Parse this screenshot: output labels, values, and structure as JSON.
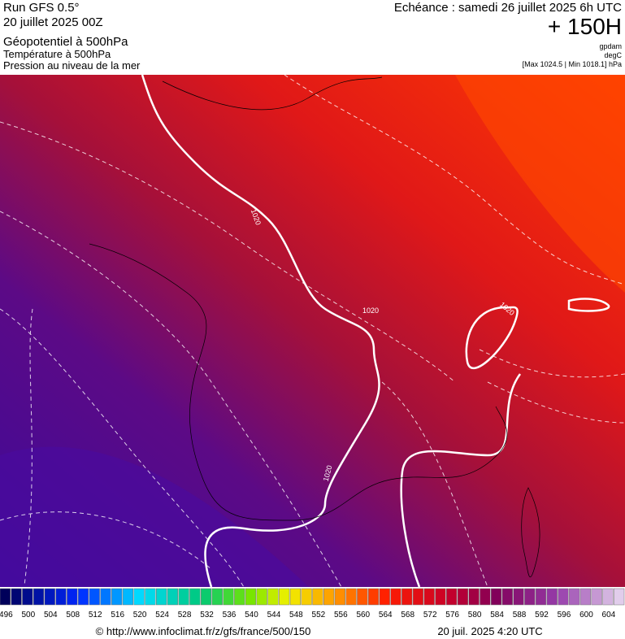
{
  "header": {
    "run": "Run GFS 0.5°",
    "run_date": "20 juillet 2025 00Z",
    "layer1": "Géopotentiel à 500hPa",
    "layer2": "Température à 500hPa",
    "layer3": "Pression au niveau de la mer",
    "valid": "Echéance : samedi 26 juillet 2025 6h UTC",
    "lead": "+ 150H",
    "unit1": "gpdam",
    "unit2": "degC",
    "range": "[Max 1024.5 | Min 1018.1] hPa"
  },
  "isobars": [
    "1020",
    "1020",
    "1020",
    "1020"
  ],
  "legend": {
    "labels": [
      "496",
      "500",
      "504",
      "508",
      "512",
      "516",
      "520",
      "524",
      "528",
      "532",
      "536",
      "540",
      "544",
      "548",
      "552",
      "556",
      "560",
      "564",
      "568",
      "572",
      "576",
      "580",
      "584",
      "588",
      "592",
      "596",
      "600",
      "604"
    ]
  },
  "footer": {
    "source": "© http://www.infoclimat.fr/z/gfs/france/500/150",
    "generated": "20 juil. 2025  4:20 UTC"
  }
}
